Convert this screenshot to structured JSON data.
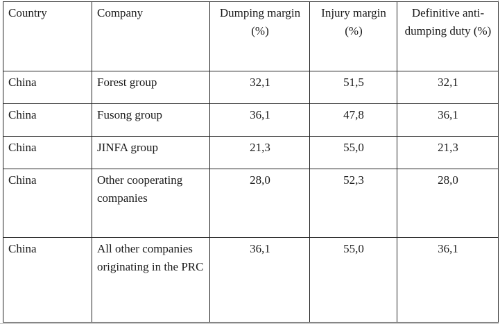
{
  "table": {
    "headers": [
      "Country",
      "Company",
      "Dumping margin (%)",
      "Injury margin (%)",
      "Definitive anti-dumping duty (%)"
    ],
    "rows": [
      [
        "China",
        "Forest group",
        "32,1",
        "51,5",
        "32,1"
      ],
      [
        "China",
        "Fusong group",
        "36,1",
        "47,8",
        "36,1"
      ],
      [
        "China",
        "JINFA group",
        "21,3",
        "55,0",
        "21,3"
      ],
      [
        "China",
        "Other cooperating companies",
        "28,0",
        "52,3",
        "28,0"
      ],
      [
        "China",
        "All other companies originating in the PRC",
        "36,1",
        "55,0",
        "36,1"
      ]
    ]
  }
}
